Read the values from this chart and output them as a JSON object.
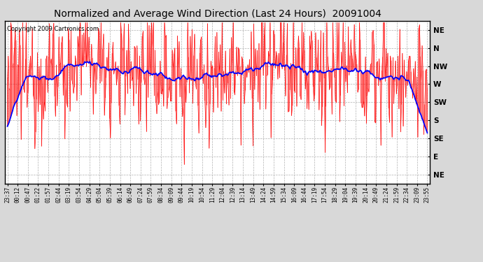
{
  "title": "Normalized and Average Wind Direction (Last 24 Hours)  20091004",
  "copyright": "Copyright 2009 Cartronics.com",
  "ytick_labels": [
    "NE",
    "N",
    "NW",
    "W",
    "SW",
    "S",
    "SE",
    "E",
    "NE"
  ],
  "ytick_values": [
    9,
    8,
    7,
    6,
    5,
    4,
    3,
    2,
    1
  ],
  "ylim": [
    0.5,
    9.5
  ],
  "bg_color": "#d8d8d8",
  "plot_bg": "#ffffff",
  "red_color": "#ff0000",
  "blue_color": "#0000ff",
  "grid_color": "#b0b0b0",
  "title_fontsize": 10,
  "copyright_fontsize": 6,
  "tick_fontsize": 7.5,
  "xtick_fontsize": 5.5,
  "x_times": [
    "23:37",
    "00:12",
    "00:47",
    "01:22",
    "01:57",
    "02:44",
    "03:19",
    "03:54",
    "04:29",
    "05:04",
    "05:39",
    "06:14",
    "06:49",
    "07:24",
    "07:59",
    "08:34",
    "09:09",
    "09:44",
    "10:19",
    "10:54",
    "11:29",
    "12:04",
    "12:39",
    "13:14",
    "13:49",
    "14:24",
    "14:59",
    "15:34",
    "16:09",
    "16:44",
    "17:19",
    "17:54",
    "18:29",
    "19:04",
    "19:39",
    "20:14",
    "20:49",
    "21:24",
    "21:59",
    "22:34",
    "23:09",
    "23:55"
  ]
}
